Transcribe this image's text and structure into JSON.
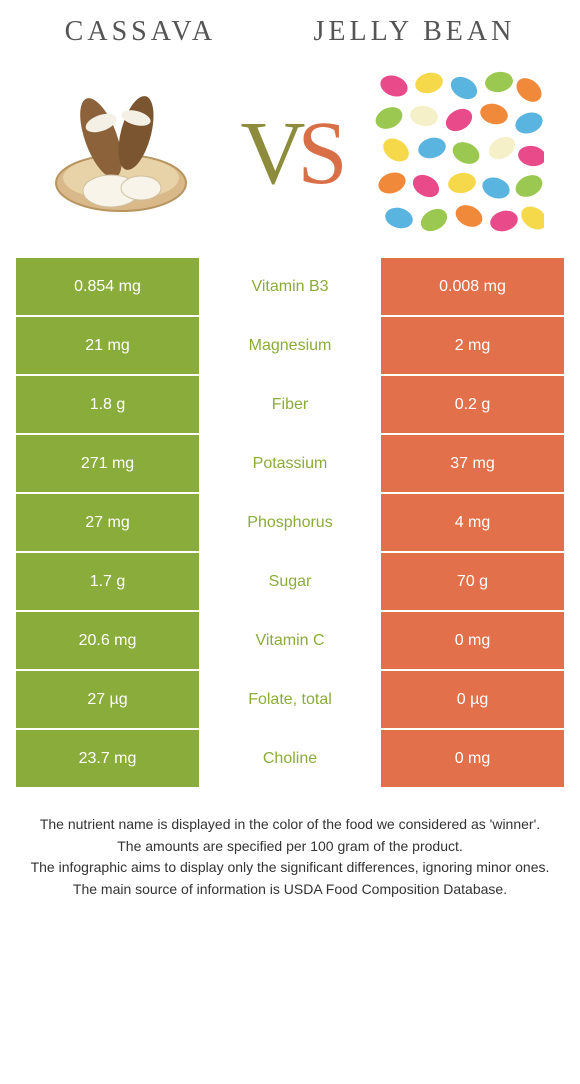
{
  "left_food": "cassava",
  "right_food": "Jelly Bean",
  "vs_v": "V",
  "vs_s": "S",
  "colors": {
    "left_bg": "#8aac3a",
    "right_bg": "#e2704a",
    "left_text": "#8aac3a",
    "right_text": "#e2704a"
  },
  "rows": [
    {
      "nutrient": "Vitamin B3",
      "left": "0.854 mg",
      "right": "0.008 mg",
      "winner": "left"
    },
    {
      "nutrient": "Magnesium",
      "left": "21 mg",
      "right": "2 mg",
      "winner": "left"
    },
    {
      "nutrient": "Fiber",
      "left": "1.8 g",
      "right": "0.2 g",
      "winner": "left"
    },
    {
      "nutrient": "Potassium",
      "left": "271 mg",
      "right": "37 mg",
      "winner": "left"
    },
    {
      "nutrient": "Phosphorus",
      "left": "27 mg",
      "right": "4 mg",
      "winner": "left"
    },
    {
      "nutrient": "Sugar",
      "left": "1.7 g",
      "right": "70 g",
      "winner": "left"
    },
    {
      "nutrient": "Vitamin C",
      "left": "20.6 mg",
      "right": "0 mg",
      "winner": "left"
    },
    {
      "nutrient": "Folate, total",
      "left": "27 µg",
      "right": "0 µg",
      "winner": "left"
    },
    {
      "nutrient": "Choline",
      "left": "23.7 mg",
      "right": "0 mg",
      "winner": "left"
    }
  ],
  "footer": [
    "The nutrient name is displayed in the color of the food we considered as 'winner'.",
    "The amounts are specified per 100 gram of the product.",
    "The infographic aims to display only the significant differences, ignoring minor ones.",
    "The main source of information is USDA Food Composition Database."
  ]
}
